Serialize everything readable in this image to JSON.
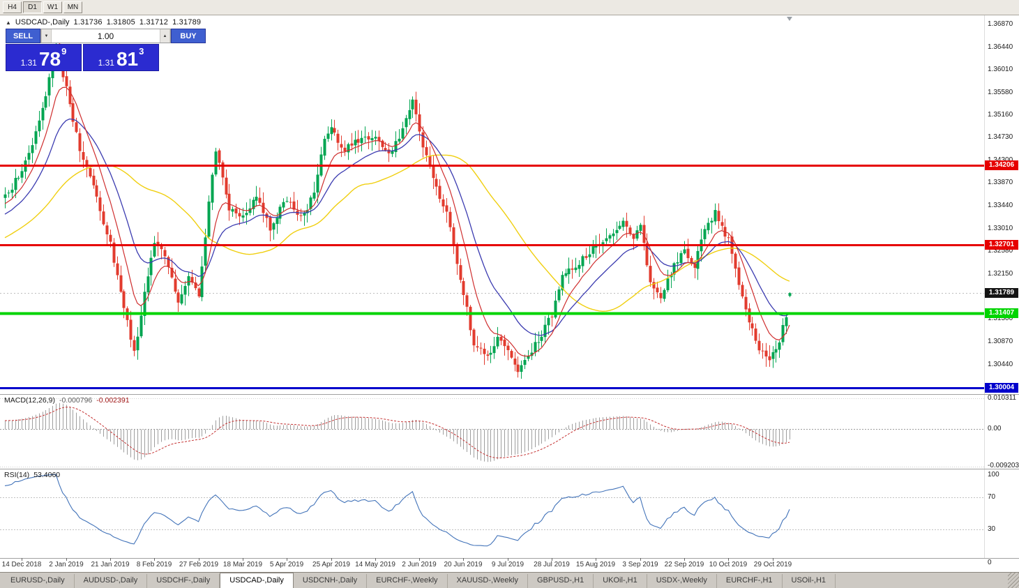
{
  "colors": {
    "bull": "#00a551",
    "bear": "#e23b2e",
    "ma_fast": "#cf2e2e",
    "ma_mid": "#3b3bb0",
    "ma_slow": "#f0cf10",
    "level_red": "#e60000",
    "level_green": "#00d400",
    "level_blue": "#0000cc",
    "current_tag": "#141414",
    "macd_hist": "#9e9e9e",
    "macd_signal": "#c43131",
    "rsi_line": "#4273b9",
    "button_blue": "#3f5fd0",
    "panel_blue": "#2b2bd0"
  },
  "toolbar": {
    "timeframes": [
      "H4",
      "D1",
      "W1",
      "MN"
    ],
    "active": "D1"
  },
  "chart_title": {
    "collapse_icon": "▲",
    "symbol": "USDCAD-,Daily",
    "open": "1.31736",
    "high": "1.31805",
    "low": "1.31712",
    "close": "1.31789"
  },
  "trade_panel": {
    "sell_label": "SELL",
    "buy_label": "BUY",
    "volume": "1.00",
    "spin_down_icon": "▼",
    "spin_up_icon": "▲",
    "sell_price": {
      "prefix": "1.31",
      "big": "78",
      "sup": "9"
    },
    "buy_price": {
      "prefix": "1.31",
      "big": "81",
      "sup": "3"
    }
  },
  "price_axis": {
    "ticks": [
      "1.36870",
      "1.36440",
      "1.36010",
      "1.35580",
      "1.35160",
      "1.34730",
      "1.34300",
      "1.33870",
      "1.33440",
      "1.33010",
      "1.32580",
      "1.32150",
      "1.31720",
      "1.31300",
      "1.30870",
      "1.30440",
      "1.30010"
    ]
  },
  "levels": [
    {
      "label": "1.34206",
      "value": 1.34206,
      "color": "red",
      "type": "resistance"
    },
    {
      "label": "1.32701",
      "value": 1.32701,
      "color": "red",
      "type": "resistance"
    },
    {
      "label": "1.31407",
      "value": 1.31407,
      "color": "green",
      "type": "support"
    },
    {
      "label": "1.30004",
      "value": 1.30004,
      "color": "blue",
      "type": "support"
    }
  ],
  "current_price": {
    "label": "1.31789",
    "value": 1.31789
  },
  "date_axis": {
    "labels": [
      "14 Dec 2018",
      "2 Jan 2019",
      "21 Jan 2019",
      "8 Feb 2019",
      "27 Feb 2019",
      "18 Mar 2019",
      "5 Apr 2019",
      "25 Apr 2019",
      "14 May 2019",
      "2 Jun 2019",
      "20 Jun 2019",
      "9 Jul 2019",
      "28 Jul 2019",
      "15 Aug 2019",
      "3 Sep 2019",
      "22 Sep 2019",
      "10 Oct 2019",
      "29 Oct 2019"
    ]
  },
  "indicators": {
    "macd": {
      "label": "MACD(12,26,9)",
      "value_main": "-0.000796",
      "value_signal": "-0.002391",
      "axis_max": "0.010311",
      "axis_zero": "0.00",
      "axis_min": "-0.009203",
      "params": {
        "fast": 12,
        "slow": 26,
        "signal": 9
      }
    },
    "rsi": {
      "label": "RSI(14)",
      "value": "53.4060",
      "period": 14,
      "levels": [
        70,
        30
      ],
      "axis_labels": [
        "100",
        "70",
        "30",
        "0"
      ]
    }
  },
  "tabs": {
    "items": [
      "EURUSD-,Daily",
      "AUDUSD-,Daily",
      "USDCHF-,Daily",
      "USDCAD-,Daily",
      "USDCNH-,Daily",
      "EURCHF-,Weekly",
      "XAUUSD-,Weekly",
      "GBPUSD-,H1",
      "UKOil-,H1",
      "USDX-,Weekly",
      "EURCHF-,H1",
      "USOil-,H1"
    ],
    "active_index": 3
  },
  "chart_data": {
    "type": "candlestick",
    "symbol": "USDCAD",
    "timeframe": "Daily",
    "bars_visible": 232,
    "ylim": [
      1.2988,
      1.3704
    ],
    "ohlc_current": {
      "open": 1.31736,
      "high": 1.31805,
      "low": 1.31712,
      "close": 1.31789
    },
    "xtick_bar_start": 5,
    "xtick_bar_step": 13,
    "price_waypoints": [
      [
        0,
        1.336
      ],
      [
        4,
        1.34
      ],
      [
        8,
        1.3465
      ],
      [
        12,
        1.3555
      ],
      [
        15,
        1.365
      ],
      [
        18,
        1.3565
      ],
      [
        22,
        1.345
      ],
      [
        26,
        1.338
      ],
      [
        31,
        1.327
      ],
      [
        35,
        1.315
      ],
      [
        38,
        1.3065
      ],
      [
        41,
        1.318
      ],
      [
        44,
        1.328
      ],
      [
        48,
        1.3235
      ],
      [
        51,
        1.316
      ],
      [
        54,
        1.3205
      ],
      [
        57,
        1.317
      ],
      [
        60,
        1.3345
      ],
      [
        62,
        1.345
      ],
      [
        66,
        1.334
      ],
      [
        70,
        1.332
      ],
      [
        74,
        1.336
      ],
      [
        78,
        1.33
      ],
      [
        83,
        1.336
      ],
      [
        87,
        1.332
      ],
      [
        91,
        1.3365
      ],
      [
        94,
        1.3475
      ],
      [
        96,
        1.349
      ],
      [
        100,
        1.345
      ],
      [
        104,
        1.3468
      ],
      [
        109,
        1.347
      ],
      [
        113,
        1.344
      ],
      [
        117,
        1.349
      ],
      [
        120,
        1.3548
      ],
      [
        122,
        1.348
      ],
      [
        126,
        1.339
      ],
      [
        130,
        1.333
      ],
      [
        135,
        1.318
      ],
      [
        138,
        1.308
      ],
      [
        142,
        1.3058
      ],
      [
        145,
        1.309
      ],
      [
        148,
        1.3068
      ],
      [
        151,
        1.303
      ],
      [
        154,
        1.3062
      ],
      [
        158,
        1.31
      ],
      [
        161,
        1.314
      ],
      [
        164,
        1.321
      ],
      [
        168,
        1.323
      ],
      [
        174,
        1.3268
      ],
      [
        178,
        1.329
      ],
      [
        182,
        1.332
      ],
      [
        185,
        1.3288
      ],
      [
        187,
        1.331
      ],
      [
        190,
        1.32
      ],
      [
        193,
        1.3172
      ],
      [
        197,
        1.323
      ],
      [
        200,
        1.3258
      ],
      [
        203,
        1.3232
      ],
      [
        206,
        1.33
      ],
      [
        209,
        1.333
      ],
      [
        213,
        1.328
      ],
      [
        216,
        1.32
      ],
      [
        219,
        1.313
      ],
      [
        222,
        1.3072
      ],
      [
        225,
        1.3046
      ],
      [
        226,
        1.3062
      ],
      [
        228,
        1.3092
      ],
      [
        230,
        1.314
      ],
      [
        231,
        1.31789
      ]
    ],
    "moving_averages": [
      {
        "type": "ema",
        "period": 9,
        "color_key": "ma_fast"
      },
      {
        "type": "ema",
        "period": 20,
        "color_key": "ma_mid"
      },
      {
        "type": "sma",
        "period": 45,
        "color_key": "ma_slow"
      }
    ],
    "horizontal_levels": [
      1.34206,
      1.32701,
      1.31407,
      1.30004
    ]
  }
}
